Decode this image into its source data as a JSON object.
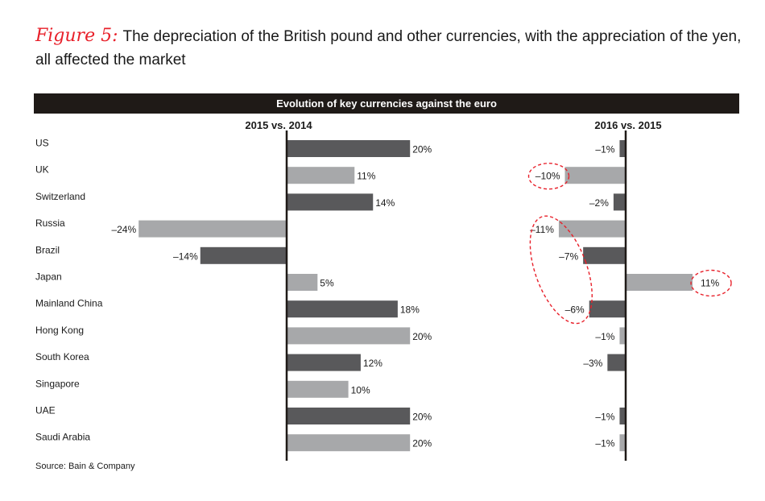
{
  "figure": {
    "label": "Figure 5:",
    "title": "The depreciation of the British pound and other currencies, with the appreciation of the yen, all affected the market"
  },
  "banner": "Evolution of key currencies against the euro",
  "source": "Source: Bain & Company",
  "colors": {
    "dark_bar": "#59595b",
    "light_bar": "#a7a8aa",
    "axis": "#1f1a17",
    "highlight": "#e8202a",
    "banner_bg": "#1f1a17"
  },
  "chart_data": [
    {
      "type": "bar",
      "orientation": "horizontal",
      "title": "2015 vs. 2014",
      "categories": [
        "US",
        "UK",
        "Switzerland",
        "Russia",
        "Brazil",
        "Japan",
        "Mainland China",
        "Hong Kong",
        "South Korea",
        "Singapore",
        "UAE",
        "Saudi Arabia"
      ],
      "values": [
        20,
        11,
        14,
        -24,
        -14,
        5,
        18,
        20,
        12,
        10,
        20,
        20
      ],
      "labels": [
        "20%",
        "11%",
        "14%",
        "–24%",
        "–14%",
        "5%",
        "18%",
        "20%",
        "12%",
        "10%",
        "20%",
        "20%"
      ],
      "shades": [
        "dark",
        "light",
        "dark",
        "light",
        "dark",
        "light",
        "dark",
        "light",
        "dark",
        "light",
        "dark",
        "light"
      ],
      "xlim": [
        -24,
        20
      ]
    },
    {
      "type": "bar",
      "orientation": "horizontal",
      "title": "2016 vs. 2015",
      "categories": [
        "US",
        "UK",
        "Switzerland",
        "Russia",
        "Brazil",
        "Japan",
        "Mainland China",
        "Hong Kong",
        "South Korea",
        "Singapore",
        "UAE",
        "Saudi Arabia"
      ],
      "values": [
        -1,
        -10,
        -2,
        -11,
        -7,
        11,
        -6,
        -1,
        -3,
        null,
        -1,
        -1
      ],
      "labels": [
        "–1%",
        "–10%",
        "–2%",
        "–11%",
        "–7%",
        "11%",
        "–6%",
        "–1%",
        "–3%",
        "",
        "–1%",
        "–1%"
      ],
      "shades": [
        "dark",
        "light",
        "dark",
        "light",
        "dark",
        "light",
        "dark",
        "light",
        "dark",
        "light",
        "dark",
        "light"
      ],
      "highlighted": [
        "UK",
        "Japan",
        "Russia",
        "Brazil",
        "Mainland China"
      ],
      "xlim": [
        -11,
        11
      ]
    }
  ]
}
